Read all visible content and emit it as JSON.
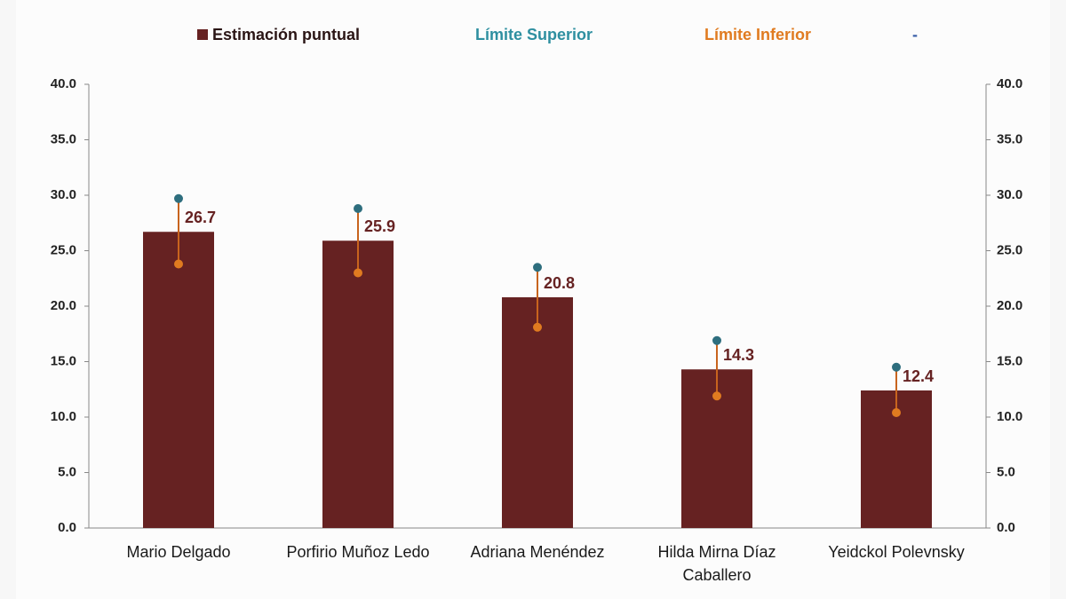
{
  "chart_data": {
    "type": "bar_errorbar",
    "categories": [
      "Mario Delgado",
      "Porfirio Muñoz Ledo",
      "Adriana Menéndez",
      "Hilda Mirna Díaz Caballero",
      "Yeidckol Polevnsky"
    ],
    "series": [
      {
        "name": "Estimación puntual",
        "color": "#662222",
        "values": [
          26.7,
          25.9,
          20.8,
          14.3,
          12.4
        ]
      },
      {
        "name": "Límite Superior",
        "color": "#2e6e7e",
        "text_color": "#2e8fa0",
        "values": [
          29.7,
          28.8,
          23.5,
          16.9,
          14.5
        ]
      },
      {
        "name": "Límite Inferior",
        "color": "#e07b20",
        "text_color": "#e07b20",
        "values": [
          23.8,
          23.0,
          18.1,
          11.9,
          10.4
        ]
      }
    ],
    "legend_extra": {
      "label": "-",
      "color": "#3a5fa8"
    },
    "ylim": [
      0,
      40
    ],
    "yticks": [
      {
        "value": 0,
        "label": "0.0"
      },
      {
        "value": 5,
        "label": "5.0"
      },
      {
        "value": 10,
        "label": "10.0"
      },
      {
        "value": 15,
        "label": "15.0"
      },
      {
        "value": 20,
        "label": "20.0"
      },
      {
        "value": 25,
        "label": "25.0"
      },
      {
        "value": 30,
        "label": "30.0"
      },
      {
        "value": 35,
        "label": "35.0"
      },
      {
        "value": 40,
        "label": "40.0"
      }
    ],
    "y2lim": [
      0,
      40
    ],
    "y2ticks": [
      {
        "value": 0,
        "label": "0.0"
      },
      {
        "value": 5,
        "label": "5.0"
      },
      {
        "value": 10,
        "label": "10.0"
      },
      {
        "value": 15,
        "label": "15.0"
      },
      {
        "value": 20,
        "label": "20.0"
      },
      {
        "value": 25,
        "label": "25.0"
      },
      {
        "value": 30,
        "label": "30.0"
      },
      {
        "value": 35,
        "label": "35.0"
      },
      {
        "value": 40,
        "label": "40.0"
      }
    ]
  }
}
